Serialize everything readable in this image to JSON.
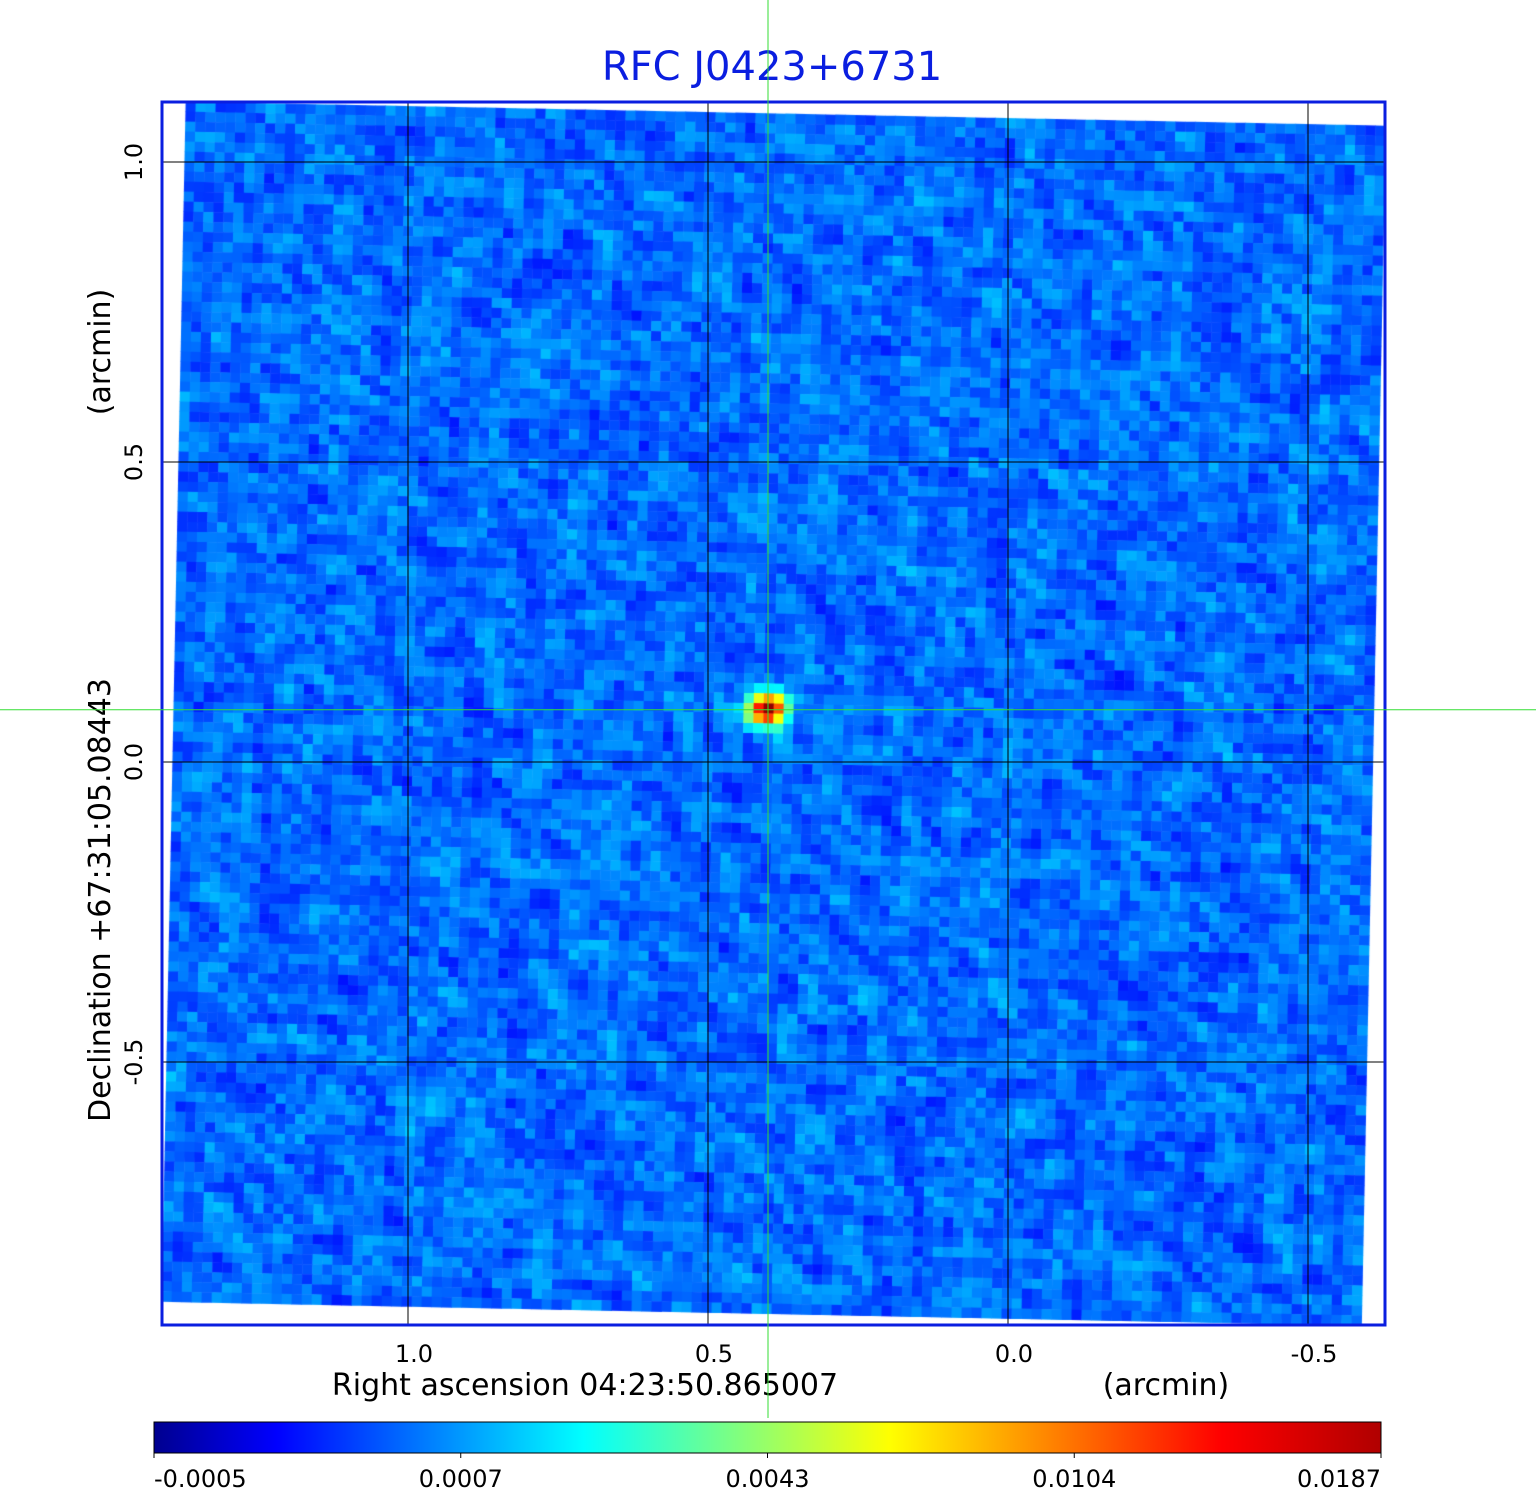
{
  "chart_data": {
    "type": "heatmap",
    "title": "RFC J0423+6731",
    "xlabel": "Right ascension  04:23:50.865007",
    "xunit": "(arcmin)",
    "ylabel": "Declination  +67:31:05.08443",
    "yunit": "(arcmin)",
    "xticks": [
      1.0,
      0.5,
      0.0,
      -0.5
    ],
    "xtick_labels": [
      "1.0",
      "0.5",
      "0.0",
      "-0.5"
    ],
    "yticks": [
      1.0,
      0.5,
      0.0,
      -0.5
    ],
    "ytick_labels": [
      "1.0",
      "0.5",
      "0.0",
      "-0.5"
    ],
    "xlim": [
      1.41,
      -0.63
    ],
    "ylim": [
      -0.94,
      1.1
    ],
    "grid": true,
    "crosshair": {
      "ra_offset": 0.4,
      "dec_offset": 0.087,
      "color": "#33dd33"
    },
    "source": {
      "ra_offset": 0.4,
      "dec_offset": 0.087,
      "peak": 0.0187
    },
    "colormap": "jet",
    "colorbar": {
      "tick_labels": [
        "-0.0005",
        "0.0007",
        "0.0043",
        "0.0104",
        "0.0187"
      ],
      "range": [
        -0.0005,
        0.0187
      ]
    },
    "frame_color": "#0a1ee0"
  }
}
